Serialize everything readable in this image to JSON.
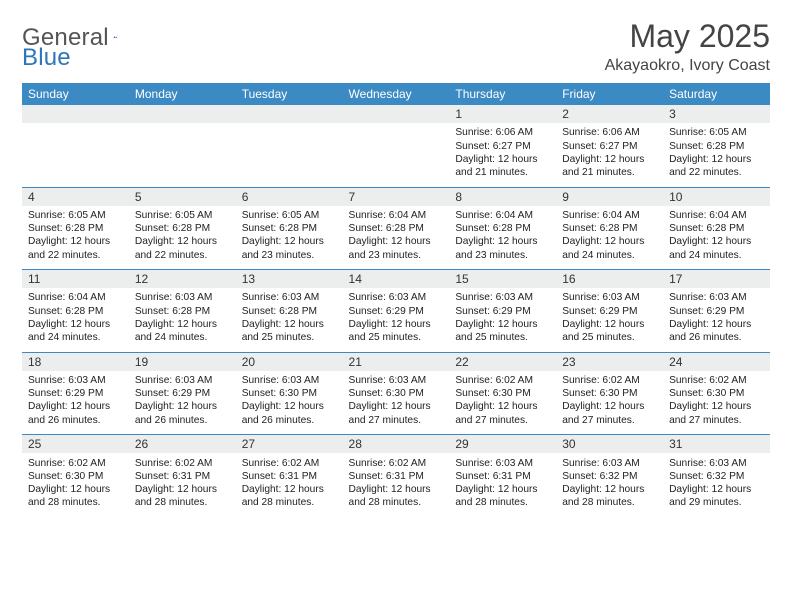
{
  "brand": {
    "word1": "General",
    "word2": "Blue"
  },
  "title": "May 2025",
  "location": "Akayaokro, Ivory Coast",
  "colors": {
    "header_bg": "#3b8ac4",
    "daynum_bg": "#eceded",
    "rule": "#3b8ac4",
    "text": "#222222"
  },
  "day_names": [
    "Sunday",
    "Monday",
    "Tuesday",
    "Wednesday",
    "Thursday",
    "Friday",
    "Saturday"
  ],
  "weeks": [
    [
      null,
      null,
      null,
      null,
      {
        "n": "1",
        "sr": "6:06 AM",
        "ss": "6:27 PM",
        "dl": "12 hours and 21 minutes."
      },
      {
        "n": "2",
        "sr": "6:06 AM",
        "ss": "6:27 PM",
        "dl": "12 hours and 21 minutes."
      },
      {
        "n": "3",
        "sr": "6:05 AM",
        "ss": "6:28 PM",
        "dl": "12 hours and 22 minutes."
      }
    ],
    [
      {
        "n": "4",
        "sr": "6:05 AM",
        "ss": "6:28 PM",
        "dl": "12 hours and 22 minutes."
      },
      {
        "n": "5",
        "sr": "6:05 AM",
        "ss": "6:28 PM",
        "dl": "12 hours and 22 minutes."
      },
      {
        "n": "6",
        "sr": "6:05 AM",
        "ss": "6:28 PM",
        "dl": "12 hours and 23 minutes."
      },
      {
        "n": "7",
        "sr": "6:04 AM",
        "ss": "6:28 PM",
        "dl": "12 hours and 23 minutes."
      },
      {
        "n": "8",
        "sr": "6:04 AM",
        "ss": "6:28 PM",
        "dl": "12 hours and 23 minutes."
      },
      {
        "n": "9",
        "sr": "6:04 AM",
        "ss": "6:28 PM",
        "dl": "12 hours and 24 minutes."
      },
      {
        "n": "10",
        "sr": "6:04 AM",
        "ss": "6:28 PM",
        "dl": "12 hours and 24 minutes."
      }
    ],
    [
      {
        "n": "11",
        "sr": "6:04 AM",
        "ss": "6:28 PM",
        "dl": "12 hours and 24 minutes."
      },
      {
        "n": "12",
        "sr": "6:03 AM",
        "ss": "6:28 PM",
        "dl": "12 hours and 24 minutes."
      },
      {
        "n": "13",
        "sr": "6:03 AM",
        "ss": "6:28 PM",
        "dl": "12 hours and 25 minutes."
      },
      {
        "n": "14",
        "sr": "6:03 AM",
        "ss": "6:29 PM",
        "dl": "12 hours and 25 minutes."
      },
      {
        "n": "15",
        "sr": "6:03 AM",
        "ss": "6:29 PM",
        "dl": "12 hours and 25 minutes."
      },
      {
        "n": "16",
        "sr": "6:03 AM",
        "ss": "6:29 PM",
        "dl": "12 hours and 25 minutes."
      },
      {
        "n": "17",
        "sr": "6:03 AM",
        "ss": "6:29 PM",
        "dl": "12 hours and 26 minutes."
      }
    ],
    [
      {
        "n": "18",
        "sr": "6:03 AM",
        "ss": "6:29 PM",
        "dl": "12 hours and 26 minutes."
      },
      {
        "n": "19",
        "sr": "6:03 AM",
        "ss": "6:29 PM",
        "dl": "12 hours and 26 minutes."
      },
      {
        "n": "20",
        "sr": "6:03 AM",
        "ss": "6:30 PM",
        "dl": "12 hours and 26 minutes."
      },
      {
        "n": "21",
        "sr": "6:03 AM",
        "ss": "6:30 PM",
        "dl": "12 hours and 27 minutes."
      },
      {
        "n": "22",
        "sr": "6:02 AM",
        "ss": "6:30 PM",
        "dl": "12 hours and 27 minutes."
      },
      {
        "n": "23",
        "sr": "6:02 AM",
        "ss": "6:30 PM",
        "dl": "12 hours and 27 minutes."
      },
      {
        "n": "24",
        "sr": "6:02 AM",
        "ss": "6:30 PM",
        "dl": "12 hours and 27 minutes."
      }
    ],
    [
      {
        "n": "25",
        "sr": "6:02 AM",
        "ss": "6:30 PM",
        "dl": "12 hours and 28 minutes."
      },
      {
        "n": "26",
        "sr": "6:02 AM",
        "ss": "6:31 PM",
        "dl": "12 hours and 28 minutes."
      },
      {
        "n": "27",
        "sr": "6:02 AM",
        "ss": "6:31 PM",
        "dl": "12 hours and 28 minutes."
      },
      {
        "n": "28",
        "sr": "6:02 AM",
        "ss": "6:31 PM",
        "dl": "12 hours and 28 minutes."
      },
      {
        "n": "29",
        "sr": "6:03 AM",
        "ss": "6:31 PM",
        "dl": "12 hours and 28 minutes."
      },
      {
        "n": "30",
        "sr": "6:03 AM",
        "ss": "6:32 PM",
        "dl": "12 hours and 28 minutes."
      },
      {
        "n": "31",
        "sr": "6:03 AM",
        "ss": "6:32 PM",
        "dl": "12 hours and 29 minutes."
      }
    ]
  ],
  "labels": {
    "sunrise": "Sunrise:",
    "sunset": "Sunset:",
    "daylight": "Daylight:"
  }
}
